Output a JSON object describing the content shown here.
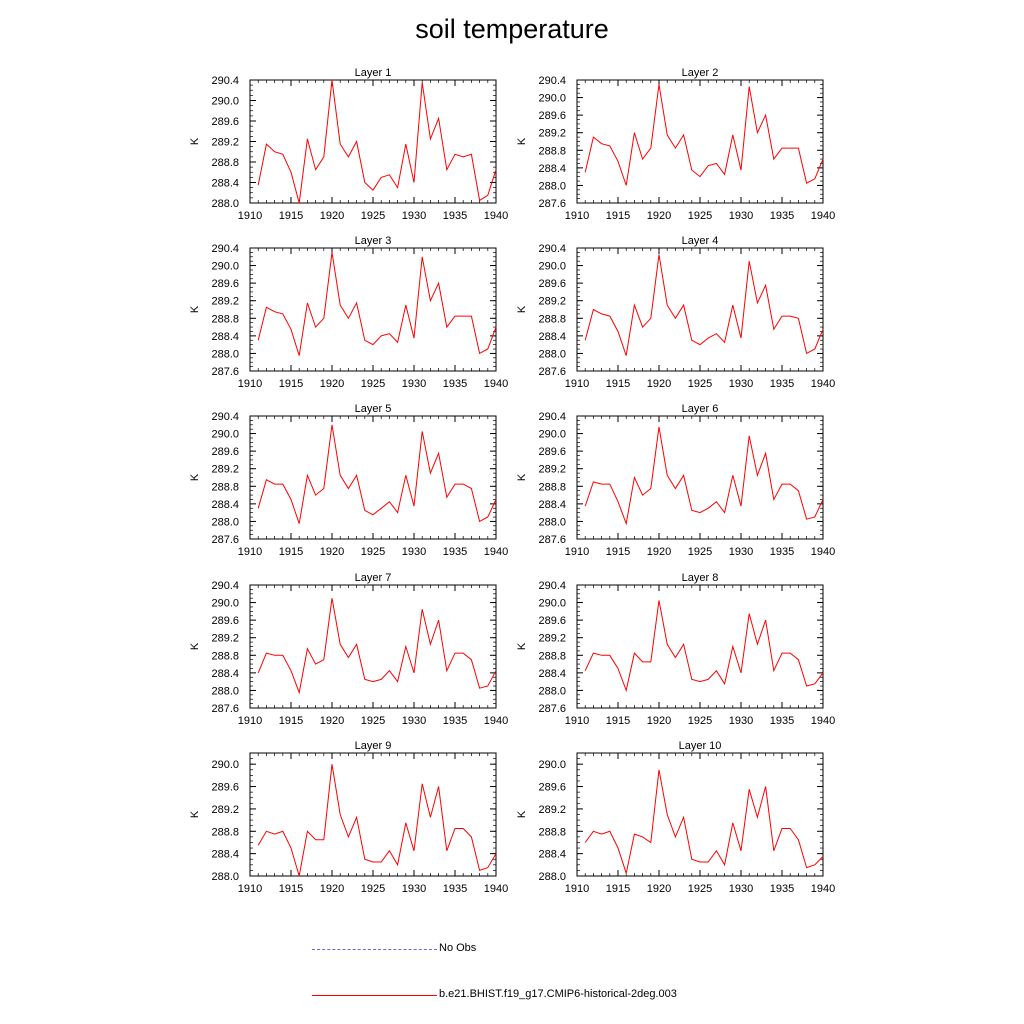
{
  "title": "soil temperature",
  "legend": [
    {
      "label": "No Obs",
      "color": "#6a6ad8",
      "style": "dashed"
    },
    {
      "label": "b.e21.BHIST.f19_g17.CMIP6-historical-2deg.003",
      "color": "#ff0000",
      "style": "solid"
    }
  ],
  "chart_data": [
    {
      "type": "line",
      "title": "Layer 1",
      "ylabel": "K",
      "xlim": [
        1910,
        1940
      ],
      "ylim": [
        288.0,
        290.4
      ],
      "xticks": [
        1910,
        1915,
        1920,
        1925,
        1930,
        1935,
        1940
      ],
      "yticks": [
        "288.0",
        "288.4",
        "288.8",
        "289.2",
        "289.6",
        "290.0",
        "290.4"
      ],
      "x": [
        1911,
        1912,
        1913,
        1914,
        1915,
        1916,
        1917,
        1918,
        1919,
        1920,
        1921,
        1922,
        1923,
        1924,
        1925,
        1926,
        1927,
        1928,
        1929,
        1930,
        1931,
        1932,
        1933,
        1934,
        1935,
        1936,
        1937,
        1938,
        1939,
        1940
      ],
      "series": [
        {
          "name": "b.e21.BHIST.f19_g17.CMIP6-historical-2deg.003",
          "color": "#ff0000",
          "values": [
            288.35,
            289.15,
            289.0,
            288.95,
            288.6,
            288.0,
            289.25,
            288.65,
            288.9,
            290.4,
            289.15,
            288.9,
            289.2,
            288.4,
            288.25,
            288.5,
            288.55,
            288.3,
            289.15,
            288.4,
            290.35,
            289.25,
            289.65,
            288.65,
            288.95,
            288.9,
            288.95,
            288.05,
            288.15,
            288.65
          ]
        }
      ]
    },
    {
      "type": "line",
      "title": "Layer 2",
      "ylabel": "K",
      "xlim": [
        1910,
        1940
      ],
      "ylim": [
        287.6,
        290.4
      ],
      "xticks": [
        1910,
        1915,
        1920,
        1925,
        1930,
        1935,
        1940
      ],
      "yticks": [
        "287.6",
        "288.0",
        "288.4",
        "288.8",
        "289.2",
        "289.6",
        "290.0",
        "290.4"
      ],
      "x": [
        1911,
        1912,
        1913,
        1914,
        1915,
        1916,
        1917,
        1918,
        1919,
        1920,
        1921,
        1922,
        1923,
        1924,
        1925,
        1926,
        1927,
        1928,
        1929,
        1930,
        1931,
        1932,
        1933,
        1934,
        1935,
        1936,
        1937,
        1938,
        1939,
        1940
      ],
      "series": [
        {
          "name": "b.e21.BHIST.f19_g17.CMIP6-historical-2deg.003",
          "color": "#ff0000",
          "values": [
            288.3,
            289.1,
            288.95,
            288.9,
            288.55,
            288.0,
            289.2,
            288.6,
            288.85,
            290.3,
            289.15,
            288.85,
            289.15,
            288.35,
            288.2,
            288.45,
            288.5,
            288.25,
            289.15,
            288.35,
            290.25,
            289.2,
            289.6,
            288.6,
            288.85,
            288.85,
            288.85,
            288.05,
            288.15,
            288.6
          ]
        }
      ]
    },
    {
      "type": "line",
      "title": "Layer 3",
      "ylabel": "K",
      "xlim": [
        1910,
        1940
      ],
      "ylim": [
        287.6,
        290.4
      ],
      "xticks": [
        1910,
        1915,
        1920,
        1925,
        1930,
        1935,
        1940
      ],
      "yticks": [
        "287.6",
        "288.0",
        "288.4",
        "288.8",
        "289.2",
        "289.6",
        "290.0",
        "290.4"
      ],
      "x": [
        1911,
        1912,
        1913,
        1914,
        1915,
        1916,
        1917,
        1918,
        1919,
        1920,
        1921,
        1922,
        1923,
        1924,
        1925,
        1926,
        1927,
        1928,
        1929,
        1930,
        1931,
        1932,
        1933,
        1934,
        1935,
        1936,
        1937,
        1938,
        1939,
        1940
      ],
      "series": [
        {
          "name": "b.e21.BHIST.f19_g17.CMIP6-historical-2deg.003",
          "color": "#ff0000",
          "values": [
            288.3,
            289.05,
            288.95,
            288.9,
            288.55,
            287.95,
            289.15,
            288.6,
            288.8,
            290.3,
            289.1,
            288.8,
            289.15,
            288.3,
            288.2,
            288.4,
            288.45,
            288.25,
            289.1,
            288.35,
            290.2,
            289.2,
            289.6,
            288.6,
            288.85,
            288.85,
            288.85,
            288.0,
            288.1,
            288.6
          ]
        }
      ]
    },
    {
      "type": "line",
      "title": "Layer 4",
      "ylabel": "K",
      "xlim": [
        1910,
        1940
      ],
      "ylim": [
        287.6,
        290.4
      ],
      "xticks": [
        1910,
        1915,
        1920,
        1925,
        1930,
        1935,
        1940
      ],
      "yticks": [
        "287.6",
        "288.0",
        "288.4",
        "288.8",
        "289.2",
        "289.6",
        "290.0",
        "290.4"
      ],
      "x": [
        1911,
        1912,
        1913,
        1914,
        1915,
        1916,
        1917,
        1918,
        1919,
        1920,
        1921,
        1922,
        1923,
        1924,
        1925,
        1926,
        1927,
        1928,
        1929,
        1930,
        1931,
        1932,
        1933,
        1934,
        1935,
        1936,
        1937,
        1938,
        1939,
        1940
      ],
      "series": [
        {
          "name": "b.e21.BHIST.f19_g17.CMIP6-historical-2deg.003",
          "color": "#ff0000",
          "values": [
            288.3,
            289.0,
            288.9,
            288.85,
            288.5,
            287.95,
            289.1,
            288.6,
            288.8,
            290.25,
            289.1,
            288.8,
            289.1,
            288.3,
            288.2,
            288.35,
            288.45,
            288.25,
            289.1,
            288.35,
            290.1,
            289.15,
            289.55,
            288.55,
            288.85,
            288.85,
            288.8,
            288.0,
            288.1,
            288.55
          ]
        }
      ]
    },
    {
      "type": "line",
      "title": "Layer 5",
      "ylabel": "K",
      "xlim": [
        1910,
        1940
      ],
      "ylim": [
        287.6,
        290.4
      ],
      "xticks": [
        1910,
        1915,
        1920,
        1925,
        1930,
        1935,
        1940
      ],
      "yticks": [
        "287.6",
        "288.0",
        "288.4",
        "288.8",
        "289.2",
        "289.6",
        "290.0",
        "290.4"
      ],
      "x": [
        1911,
        1912,
        1913,
        1914,
        1915,
        1916,
        1917,
        1918,
        1919,
        1920,
        1921,
        1922,
        1923,
        1924,
        1925,
        1926,
        1927,
        1928,
        1929,
        1930,
        1931,
        1932,
        1933,
        1934,
        1935,
        1936,
        1937,
        1938,
        1939,
        1940
      ],
      "series": [
        {
          "name": "b.e21.BHIST.f19_g17.CMIP6-historical-2deg.003",
          "color": "#ff0000",
          "values": [
            288.3,
            288.95,
            288.85,
            288.85,
            288.5,
            287.95,
            289.05,
            288.6,
            288.75,
            290.2,
            289.05,
            288.75,
            289.05,
            288.25,
            288.15,
            288.3,
            288.45,
            288.2,
            289.05,
            288.35,
            290.05,
            289.1,
            289.55,
            288.55,
            288.85,
            288.85,
            288.75,
            288.0,
            288.1,
            288.5
          ]
        }
      ]
    },
    {
      "type": "line",
      "title": "Layer 6",
      "ylabel": "K",
      "xlim": [
        1910,
        1940
      ],
      "ylim": [
        287.6,
        290.4
      ],
      "xticks": [
        1910,
        1915,
        1920,
        1925,
        1930,
        1935,
        1940
      ],
      "yticks": [
        "287.6",
        "288.0",
        "288.4",
        "288.8",
        "289.2",
        "289.6",
        "290.0",
        "290.4"
      ],
      "x": [
        1911,
        1912,
        1913,
        1914,
        1915,
        1916,
        1917,
        1918,
        1919,
        1920,
        1921,
        1922,
        1923,
        1924,
        1925,
        1926,
        1927,
        1928,
        1929,
        1930,
        1931,
        1932,
        1933,
        1934,
        1935,
        1936,
        1937,
        1938,
        1939,
        1940
      ],
      "series": [
        {
          "name": "b.e21.BHIST.f19_g17.CMIP6-historical-2deg.003",
          "color": "#ff0000",
          "values": [
            288.35,
            288.9,
            288.85,
            288.85,
            288.45,
            287.95,
            289.0,
            288.6,
            288.75,
            290.15,
            289.05,
            288.75,
            289.05,
            288.25,
            288.2,
            288.3,
            288.45,
            288.2,
            289.05,
            288.35,
            289.95,
            289.05,
            289.55,
            288.5,
            288.85,
            288.85,
            288.7,
            288.05,
            288.1,
            288.5
          ]
        }
      ]
    },
    {
      "type": "line",
      "title": "Layer 7",
      "ylabel": "K",
      "xlim": [
        1910,
        1940
      ],
      "ylim": [
        287.6,
        290.4
      ],
      "xticks": [
        1910,
        1915,
        1920,
        1925,
        1930,
        1935,
        1940
      ],
      "yticks": [
        "287.6",
        "288.0",
        "288.4",
        "288.8",
        "289.2",
        "289.6",
        "290.0",
        "290.4"
      ],
      "x": [
        1911,
        1912,
        1913,
        1914,
        1915,
        1916,
        1917,
        1918,
        1919,
        1920,
        1921,
        1922,
        1923,
        1924,
        1925,
        1926,
        1927,
        1928,
        1929,
        1930,
        1931,
        1932,
        1933,
        1934,
        1935,
        1936,
        1937,
        1938,
        1939,
        1940
      ],
      "series": [
        {
          "name": "b.e21.BHIST.f19_g17.CMIP6-historical-2deg.003",
          "color": "#ff0000",
          "values": [
            288.4,
            288.85,
            288.8,
            288.8,
            288.45,
            287.95,
            288.95,
            288.6,
            288.7,
            290.1,
            289.05,
            288.75,
            289.05,
            288.25,
            288.2,
            288.25,
            288.45,
            288.2,
            289.0,
            288.4,
            289.85,
            289.05,
            289.6,
            288.45,
            288.85,
            288.85,
            288.7,
            288.05,
            288.1,
            288.45
          ]
        }
      ]
    },
    {
      "type": "line",
      "title": "Layer 8",
      "ylabel": "K",
      "xlim": [
        1910,
        1940
      ],
      "ylim": [
        287.6,
        290.4
      ],
      "xticks": [
        1910,
        1915,
        1920,
        1925,
        1930,
        1935,
        1940
      ],
      "yticks": [
        "287.6",
        "288.0",
        "288.4",
        "288.8",
        "289.2",
        "289.6",
        "290.0",
        "290.4"
      ],
      "x": [
        1911,
        1912,
        1913,
        1914,
        1915,
        1916,
        1917,
        1918,
        1919,
        1920,
        1921,
        1922,
        1923,
        1924,
        1925,
        1926,
        1927,
        1928,
        1929,
        1930,
        1931,
        1932,
        1933,
        1934,
        1935,
        1936,
        1937,
        1938,
        1939,
        1940
      ],
      "series": [
        {
          "name": "b.e21.BHIST.f19_g17.CMIP6-historical-2deg.003",
          "color": "#ff0000",
          "values": [
            288.45,
            288.85,
            288.8,
            288.8,
            288.5,
            288.0,
            288.85,
            288.65,
            288.65,
            290.05,
            289.05,
            288.75,
            289.05,
            288.25,
            288.2,
            288.25,
            288.45,
            288.15,
            289.0,
            288.4,
            289.75,
            289.05,
            289.6,
            288.45,
            288.85,
            288.85,
            288.7,
            288.1,
            288.15,
            288.4
          ]
        }
      ]
    },
    {
      "type": "line",
      "title": "Layer 9",
      "ylabel": "K",
      "xlim": [
        1910,
        1940
      ],
      "ylim": [
        288.0,
        290.2
      ],
      "xticks": [
        1910,
        1915,
        1920,
        1925,
        1930,
        1935,
        1940
      ],
      "yticks": [
        "288.0",
        "288.4",
        "288.8",
        "289.2",
        "289.6",
        "290.0"
      ],
      "x": [
        1911,
        1912,
        1913,
        1914,
        1915,
        1916,
        1917,
        1918,
        1919,
        1920,
        1921,
        1922,
        1923,
        1924,
        1925,
        1926,
        1927,
        1928,
        1929,
        1930,
        1931,
        1932,
        1933,
        1934,
        1935,
        1936,
        1937,
        1938,
        1939,
        1940
      ],
      "series": [
        {
          "name": "b.e21.BHIST.f19_g17.CMIP6-historical-2deg.003",
          "color": "#ff0000",
          "values": [
            288.55,
            288.8,
            288.75,
            288.8,
            288.5,
            288.0,
            288.8,
            288.65,
            288.65,
            290.0,
            289.1,
            288.7,
            289.05,
            288.3,
            288.25,
            288.25,
            288.45,
            288.2,
            288.95,
            288.45,
            289.65,
            289.05,
            289.6,
            288.45,
            288.85,
            288.85,
            288.7,
            288.1,
            288.15,
            288.4
          ]
        }
      ]
    },
    {
      "type": "line",
      "title": "Layer 10",
      "ylabel": "K",
      "xlim": [
        1910,
        1940
      ],
      "ylim": [
        288.0,
        290.2
      ],
      "xticks": [
        1910,
        1915,
        1920,
        1925,
        1930,
        1935,
        1940
      ],
      "yticks": [
        "288.0",
        "288.4",
        "288.8",
        "289.2",
        "289.6",
        "290.0"
      ],
      "x": [
        1911,
        1912,
        1913,
        1914,
        1915,
        1916,
        1917,
        1918,
        1919,
        1920,
        1921,
        1922,
        1923,
        1924,
        1925,
        1926,
        1927,
        1928,
        1929,
        1930,
        1931,
        1932,
        1933,
        1934,
        1935,
        1936,
        1937,
        1938,
        1939,
        1940
      ],
      "series": [
        {
          "name": "b.e21.BHIST.f19_g17.CMIP6-historical-2deg.003",
          "color": "#ff0000",
          "values": [
            288.6,
            288.8,
            288.75,
            288.8,
            288.5,
            288.05,
            288.75,
            288.7,
            288.6,
            289.9,
            289.1,
            288.7,
            289.05,
            288.3,
            288.25,
            288.25,
            288.45,
            288.2,
            288.95,
            288.45,
            289.55,
            289.05,
            289.6,
            288.45,
            288.85,
            288.85,
            288.65,
            288.15,
            288.2,
            288.35
          ]
        }
      ]
    }
  ]
}
